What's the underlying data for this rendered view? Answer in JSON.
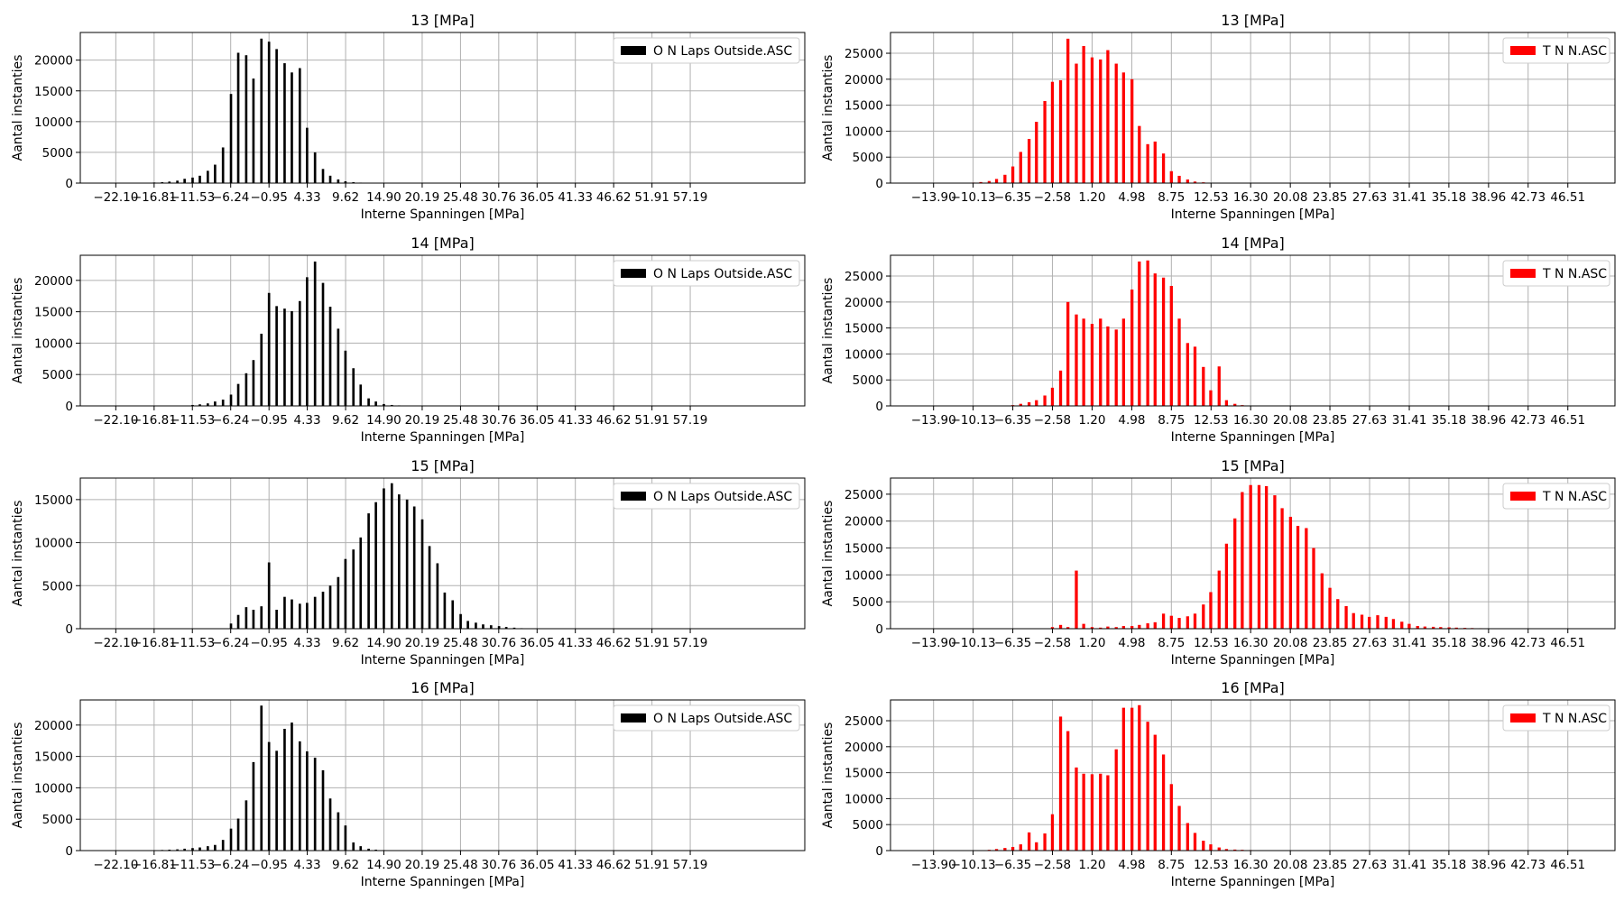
{
  "figure_title": "",
  "chart_data": [
    {
      "type": "bar",
      "title": "13 [MPa]",
      "xlabel": "Interne Spanningen [MPa]",
      "ylabel": "Aantal instanties",
      "legend": "O N Laps Outside.ASC",
      "legend_position": "top-right",
      "grid": true,
      "color": "#000000",
      "xlim": [
        -27.0,
        73.0
      ],
      "ylim": [
        0,
        24500
      ],
      "xticks": [
        -22.1,
        -16.81,
        -11.53,
        -6.24,
        -0.95,
        4.33,
        9.62,
        14.9,
        20.19,
        25.48,
        30.76,
        36.05,
        41.33,
        46.62,
        51.91,
        57.19
      ],
      "xtick_labels": [
        "−22.10",
        "−16.81",
        "−11.53",
        "−6.24",
        "−0.95",
        "4.33",
        "9.62",
        "14.90",
        "20.19",
        "25.48",
        "30.76",
        "36.05",
        "41.33",
        "46.62",
        "51.91",
        "57.19"
      ],
      "yticks": [
        0,
        5000,
        10000,
        15000,
        20000
      ],
      "x": [
        -16.8,
        -15.7,
        -14.7,
        -13.6,
        -12.6,
        -11.5,
        -10.5,
        -9.4,
        -8.4,
        -7.3,
        -6.2,
        -5.2,
        -4.1,
        -3.1,
        -2.0,
        -0.95,
        0.1,
        1.2,
        2.2,
        3.3,
        4.3,
        5.4,
        6.5,
        7.5,
        8.6,
        9.6,
        10.7,
        11.7,
        12.8
      ],
      "values": [
        100,
        150,
        250,
        400,
        700,
        900,
        1200,
        2000,
        3000,
        5800,
        14500,
        21200,
        20800,
        17000,
        23500,
        23000,
        21800,
        19500,
        18000,
        18700,
        9000,
        5000,
        2300,
        1200,
        600,
        300,
        150,
        80,
        40
      ]
    },
    {
      "type": "bar",
      "title": "13 [MPa]",
      "xlabel": "Interne Spanningen [MPa]",
      "ylabel": "Aantal instanties",
      "legend": "T N N.ASC",
      "legend_position": "top-right",
      "grid": true,
      "color": "#ff0000",
      "xlim": [
        -18.0,
        51.0
      ],
      "ylim": [
        0,
        29000
      ],
      "xticks": [
        -13.9,
        -10.13,
        -6.35,
        -2.58,
        1.2,
        4.98,
        8.75,
        12.53,
        16.3,
        20.08,
        23.85,
        27.63,
        31.41,
        35.18,
        38.96,
        42.73,
        46.51
      ],
      "xtick_labels": [
        "−13.90",
        "−10.13",
        "−6.35",
        "−2.58",
        "1.20",
        "4.98",
        "8.75",
        "12.53",
        "16.30",
        "20.08",
        "23.85",
        "27.63",
        "31.41",
        "35.18",
        "38.96",
        "42.73",
        "46.51"
      ],
      "yticks": [
        0,
        5000,
        10000,
        15000,
        20000,
        25000
      ],
      "x": [
        -10.1,
        -9.4,
        -8.6,
        -7.9,
        -7.1,
        -6.35,
        -5.6,
        -4.8,
        -4.1,
        -3.3,
        -2.58,
        -1.8,
        -1.1,
        -0.3,
        0.4,
        1.2,
        2.0,
        2.7,
        3.5,
        4.2,
        5.0,
        5.7,
        6.5,
        7.2,
        8.0,
        8.75,
        9.5,
        10.3,
        11.0,
        11.8,
        12.5
      ],
      "values": [
        100,
        200,
        400,
        800,
        1600,
        3200,
        6000,
        8500,
        11800,
        15800,
        19500,
        19800,
        27800,
        23000,
        26400,
        24200,
        23800,
        25600,
        23000,
        21300,
        20000,
        11000,
        7500,
        8000,
        5700,
        2300,
        1400,
        700,
        300,
        150,
        80
      ]
    },
    {
      "type": "bar",
      "title": "14 [MPa]",
      "xlabel": "Interne Spanningen [MPa]",
      "ylabel": "Aantal instanties",
      "legend": "O N Laps Outside.ASC",
      "legend_position": "top-right",
      "grid": true,
      "color": "#000000",
      "xlim": [
        -27.0,
        73.0
      ],
      "ylim": [
        0,
        24000
      ],
      "xticks": [
        -22.1,
        -16.81,
        -11.53,
        -6.24,
        -0.95,
        4.33,
        9.62,
        14.9,
        20.19,
        25.48,
        30.76,
        36.05,
        41.33,
        46.62,
        51.91,
        57.19
      ],
      "xtick_labels": [
        "−22.10",
        "−16.81",
        "−11.53",
        "−6.24",
        "−0.95",
        "4.33",
        "9.62",
        "14.90",
        "20.19",
        "25.48",
        "30.76",
        "36.05",
        "41.33",
        "46.62",
        "51.91",
        "57.19"
      ],
      "yticks": [
        0,
        5000,
        10000,
        15000,
        20000
      ],
      "x": [
        -11.5,
        -10.5,
        -9.4,
        -8.4,
        -7.3,
        -6.2,
        -5.2,
        -4.1,
        -3.1,
        -2.0,
        -0.95,
        0.1,
        1.2,
        2.2,
        3.3,
        4.3,
        5.4,
        6.5,
        7.5,
        8.6,
        9.6,
        10.7,
        11.7,
        12.8,
        13.8,
        14.9,
        16.0,
        17.0
      ],
      "values": [
        150,
        250,
        400,
        700,
        1000,
        1800,
        3500,
        5200,
        7300,
        11500,
        18000,
        15900,
        15500,
        15100,
        16700,
        20500,
        23000,
        19600,
        15800,
        12300,
        8800,
        6000,
        3400,
        1200,
        700,
        300,
        150,
        80
      ]
    },
    {
      "type": "bar",
      "title": "14 [MPa]",
      "xlabel": "Interne Spanningen [MPa]",
      "ylabel": "Aantal instanties",
      "legend": "T N N.ASC",
      "legend_position": "top-right",
      "grid": true,
      "color": "#ff0000",
      "xlim": [
        -18.0,
        51.0
      ],
      "ylim": [
        0,
        29000
      ],
      "xticks": [
        -13.9,
        -10.13,
        -6.35,
        -2.58,
        1.2,
        4.98,
        8.75,
        12.53,
        16.3,
        20.08,
        23.85,
        27.63,
        31.41,
        35.18,
        38.96,
        42.73,
        46.51
      ],
      "xtick_labels": [
        "−13.90",
        "−10.13",
        "−6.35",
        "−2.58",
        "1.20",
        "4.98",
        "8.75",
        "12.53",
        "16.30",
        "20.08",
        "23.85",
        "27.63",
        "31.41",
        "35.18",
        "38.96",
        "42.73",
        "46.51"
      ],
      "yticks": [
        0,
        5000,
        10000,
        15000,
        20000,
        25000
      ],
      "x": [
        -6.35,
        -5.6,
        -4.8,
        -4.1,
        -3.3,
        -2.58,
        -1.8,
        -1.1,
        -0.3,
        0.4,
        1.2,
        2.0,
        2.7,
        3.5,
        4.2,
        5.0,
        5.7,
        6.5,
        7.2,
        8.0,
        8.75,
        9.5,
        10.3,
        11.0,
        11.8,
        12.5,
        13.3,
        14.0,
        14.8,
        15.5
      ],
      "values": [
        150,
        400,
        700,
        1100,
        2000,
        3500,
        6800,
        20000,
        17600,
        16800,
        15800,
        16800,
        15300,
        14700,
        16800,
        22400,
        27800,
        28000,
        25500,
        24700,
        23100,
        16800,
        12100,
        11400,
        7500,
        3000,
        7600,
        1100,
        400,
        150
      ]
    },
    {
      "type": "bar",
      "title": "15 [MPa]",
      "xlabel": "Interne Spanningen [MPa]",
      "ylabel": "Aantal instanties",
      "legend": "O N Laps Outside.ASC",
      "legend_position": "top-right",
      "grid": true,
      "color": "#000000",
      "xlim": [
        -27.0,
        73.0
      ],
      "ylim": [
        0,
        17500
      ],
      "xticks": [
        -22.1,
        -16.81,
        -11.53,
        -6.24,
        -0.95,
        4.33,
        9.62,
        14.9,
        20.19,
        25.48,
        30.76,
        36.05,
        41.33,
        46.62,
        51.91,
        57.19
      ],
      "xtick_labels": [
        "−22.10",
        "−16.81",
        "−11.53",
        "−6.24",
        "−0.95",
        "4.33",
        "9.62",
        "14.90",
        "20.19",
        "25.48",
        "30.76",
        "36.05",
        "41.33",
        "46.62",
        "51.91",
        "57.19"
      ],
      "yticks": [
        0,
        5000,
        10000,
        15000
      ],
      "x": [
        -6.2,
        -5.2,
        -4.1,
        -3.1,
        -2.0,
        -0.95,
        0.1,
        1.2,
        2.2,
        3.3,
        4.3,
        5.4,
        6.5,
        7.5,
        8.6,
        9.6,
        10.7,
        11.7,
        12.8,
        13.8,
        14.9,
        16.0,
        17.0,
        18.1,
        19.1,
        20.2,
        21.2,
        22.3,
        23.3,
        24.4,
        25.5,
        26.5,
        27.6,
        28.6,
        29.7,
        30.8,
        31.8,
        32.9,
        33.9
      ],
      "values": [
        600,
        1600,
        2500,
        2200,
        2600,
        7700,
        2200,
        3700,
        3400,
        2900,
        3000,
        3700,
        4300,
        5000,
        6000,
        8100,
        9200,
        10600,
        13400,
        14700,
        16300,
        16900,
        15600,
        15000,
        14200,
        12700,
        9600,
        7600,
        4200,
        3300,
        1700,
        900,
        700,
        500,
        400,
        300,
        200,
        120,
        60
      ]
    },
    {
      "type": "bar",
      "title": "15 [MPa]",
      "xlabel": "Interne Spanningen [MPa]",
      "ylabel": "Aantal instanties",
      "legend": "T N N.ASC",
      "legend_position": "top-right",
      "grid": true,
      "color": "#ff0000",
      "xlim": [
        -18.0,
        51.0
      ],
      "ylim": [
        0,
        28000
      ],
      "xticks": [
        -13.9,
        -10.13,
        -6.35,
        -2.58,
        1.2,
        4.98,
        8.75,
        12.53,
        16.3,
        20.08,
        23.85,
        27.63,
        31.41,
        35.18,
        38.96,
        42.73,
        46.51
      ],
      "xtick_labels": [
        "−13.90",
        "−10.13",
        "−6.35",
        "−2.58",
        "1.20",
        "4.98",
        "8.75",
        "12.53",
        "16.30",
        "20.08",
        "23.85",
        "27.63",
        "31.41",
        "35.18",
        "38.96",
        "42.73",
        "46.51"
      ],
      "yticks": [
        0,
        5000,
        10000,
        15000,
        20000,
        25000
      ],
      "x": [
        -2.58,
        -1.8,
        -1.1,
        -0.3,
        0.4,
        1.2,
        2.0,
        2.7,
        3.5,
        4.2,
        5.0,
        5.7,
        6.5,
        7.2,
        8.0,
        8.75,
        9.5,
        10.3,
        11.0,
        11.8,
        12.5,
        13.3,
        14.0,
        14.8,
        15.5,
        16.3,
        17.1,
        17.8,
        18.6,
        19.3,
        20.1,
        20.8,
        21.6,
        22.3,
        23.1,
        23.85,
        24.6,
        25.4,
        26.1,
        26.9,
        27.6,
        28.4,
        29.2,
        29.9,
        30.7,
        31.4,
        32.2,
        32.9,
        33.7,
        34.4,
        35.2,
        35.9,
        36.7,
        37.4,
        38.2,
        39.0
      ],
      "values": [
        300,
        700,
        300,
        10800,
        900,
        300,
        200,
        400,
        300,
        500,
        500,
        700,
        1000,
        1200,
        2800,
        2400,
        2000,
        2300,
        2800,
        4500,
        6800,
        10800,
        15800,
        20500,
        25400,
        26700,
        26700,
        26500,
        24800,
        22400,
        20800,
        19100,
        18700,
        15000,
        10300,
        7600,
        5500,
        4200,
        2900,
        2600,
        2200,
        2500,
        2200,
        1800,
        1300,
        900,
        500,
        400,
        350,
        300,
        250,
        200,
        150,
        120,
        90,
        60
      ]
    },
    {
      "type": "bar",
      "title": "16 [MPa]",
      "xlabel": "Interne Spanningen [MPa]",
      "ylabel": "Aantal instanties",
      "legend": "O N Laps Outside.ASC",
      "legend_position": "top-right",
      "grid": true,
      "color": "#000000",
      "xlim": [
        -27.0,
        73.0
      ],
      "ylim": [
        0,
        24000
      ],
      "xticks": [
        -22.1,
        -16.81,
        -11.53,
        -6.24,
        -0.95,
        4.33,
        9.62,
        14.9,
        20.19,
        25.48,
        30.76,
        36.05,
        41.33,
        46.62,
        51.91,
        57.19
      ],
      "xtick_labels": [
        "−22.10",
        "−16.81",
        "−11.53",
        "−6.24",
        "−0.95",
        "4.33",
        "9.62",
        "14.90",
        "20.19",
        "25.48",
        "30.76",
        "36.05",
        "41.33",
        "46.62",
        "51.91",
        "57.19"
      ],
      "yticks": [
        0,
        5000,
        10000,
        15000,
        20000
      ],
      "x": [
        -15.7,
        -14.7,
        -13.6,
        -12.6,
        -11.5,
        -10.5,
        -9.4,
        -8.4,
        -7.3,
        -6.2,
        -5.2,
        -4.1,
        -3.1,
        -2.0,
        -0.95,
        0.1,
        1.2,
        2.2,
        3.3,
        4.3,
        5.4,
        6.5,
        7.5,
        8.6,
        9.6,
        10.7,
        11.7,
        12.8,
        13.8,
        14.9
      ],
      "values": [
        100,
        150,
        200,
        300,
        400,
        500,
        700,
        900,
        1700,
        3500,
        5100,
        8000,
        14100,
        23100,
        17300,
        15900,
        19400,
        20400,
        17400,
        15800,
        14800,
        12800,
        8300,
        6100,
        4000,
        1300,
        700,
        300,
        150,
        80
      ]
    },
    {
      "type": "bar",
      "title": "16 [MPa]",
      "xlabel": "Interne Spanningen [MPa]",
      "ylabel": "Aantal instanties",
      "legend": "T N N.ASC",
      "legend_position": "top-right",
      "grid": true,
      "color": "#ff0000",
      "xlim": [
        -18.0,
        51.0
      ],
      "ylim": [
        0,
        29000
      ],
      "xticks": [
        -13.9,
        -10.13,
        -6.35,
        -2.58,
        1.2,
        4.98,
        8.75,
        12.53,
        16.3,
        20.08,
        23.85,
        27.63,
        31.41,
        35.18,
        38.96,
        42.73,
        46.51
      ],
      "xtick_labels": [
        "−13.90",
        "−10.13",
        "−6.35",
        "−2.58",
        "1.20",
        "4.98",
        "8.75",
        "12.53",
        "16.30",
        "20.08",
        "23.85",
        "27.63",
        "31.41",
        "35.18",
        "38.96",
        "42.73",
        "46.51"
      ],
      "yticks": [
        0,
        5000,
        10000,
        15000,
        20000,
        25000
      ],
      "x": [
        -8.6,
        -7.9,
        -7.1,
        -6.35,
        -5.6,
        -4.8,
        -4.1,
        -3.3,
        -2.58,
        -1.8,
        -1.1,
        -0.3,
        0.4,
        1.2,
        2.0,
        2.7,
        3.5,
        4.2,
        5.0,
        5.7,
        6.5,
        7.2,
        8.0,
        8.75,
        9.5,
        10.3,
        11.0,
        11.8,
        12.5,
        13.3,
        14.0,
        14.8,
        15.5,
        16.3,
        17.1
      ],
      "values": [
        150,
        300,
        500,
        700,
        1200,
        3500,
        1600,
        3300,
        7000,
        25800,
        23000,
        16000,
        14800,
        14700,
        14800,
        14500,
        19500,
        27500,
        27500,
        28000,
        24800,
        22300,
        18500,
        12800,
        8600,
        5300,
        3400,
        1900,
        1200,
        600,
        300,
        200,
        150,
        100,
        50
      ]
    }
  ]
}
